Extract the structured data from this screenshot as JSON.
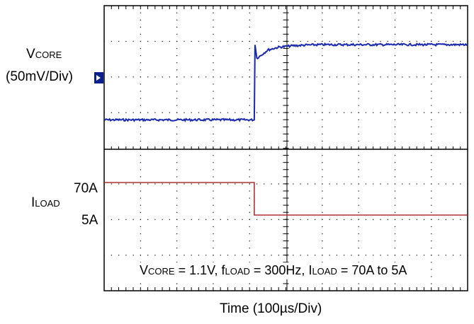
{
  "chart_data": [
    {
      "type": "line",
      "title": "",
      "ylabel_main": "V",
      "ylabel_sub": "CORE",
      "ylabel_scale": "(50mV/Div)",
      "xlabel": "Time (100µs/Div)",
      "x_unit": "div",
      "xlim": [
        0,
        10
      ],
      "y_unit": "div",
      "ylim": [
        -2,
        4
      ],
      "series": [
        {
          "color": "#1a2ab0",
          "x": [
            0,
            4.13,
            4.15,
            4.2,
            4.3,
            4.5,
            4.8,
            5.2,
            5.6,
            6.0,
            7.0,
            8.0,
            10.0
          ],
          "y": [
            -1.18,
            -1.18,
            0.95,
            0.55,
            0.62,
            0.78,
            0.86,
            0.9,
            0.92,
            0.93,
            0.93,
            0.93,
            0.93
          ]
        }
      ],
      "grid": true
    },
    {
      "type": "line",
      "title": "",
      "ylabel_main": "I",
      "ylabel_sub": "LOAD",
      "yticks": [
        "70A",
        "5A"
      ],
      "tick_values": [
        70,
        5
      ],
      "y_unit": "A",
      "xlabel": "Time (100µs/Div)",
      "x_unit": "div",
      "xlim": [
        0,
        10
      ],
      "series": [
        {
          "color": "#b03030",
          "x": [
            0,
            4.13,
            4.13,
            10
          ],
          "y": [
            70,
            70,
            5,
            5
          ]
        }
      ],
      "grid": true
    }
  ],
  "labels": {
    "vcore_main": "V",
    "vcore_sub": "CORE",
    "vcore_scale": "(50mV/Div)",
    "i70": "70A",
    "iload_main": "I",
    "iload_sub": "LOAD",
    "i5": "5A",
    "cond_v": "V",
    "cond_v_sub": "CORE",
    "cond_v_val": " = 1.1V, f",
    "cond_f_sub": "LOAD",
    "cond_f_val": " = 300Hz, I",
    "cond_i_sub": "LOAD",
    "cond_i_val": " = 70A to 5A",
    "xaxis": "Time  (100µs/Div)"
  },
  "colors": {
    "vcore": "#1a2ab0",
    "iload": "#b03030",
    "marker": "#0b1f8f",
    "grid": "#000000"
  }
}
